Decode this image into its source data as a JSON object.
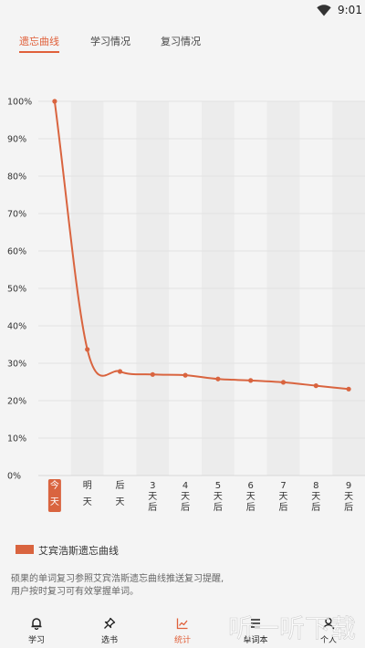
{
  "status_bar": {
    "time": "9:01"
  },
  "tabs": [
    {
      "label": "遗忘曲线",
      "active": true
    },
    {
      "label": "学习情况",
      "active": false
    },
    {
      "label": "复习情况",
      "active": false
    }
  ],
  "chart_data": {
    "type": "line",
    "categories": [
      "今天",
      "明天",
      "后天",
      "3天后",
      "4天后",
      "5天后",
      "6天后",
      "7天后",
      "8天后",
      "9天后"
    ],
    "y_ticks": [
      "100%",
      "90%",
      "80%",
      "70%",
      "60%",
      "50%",
      "40%",
      "30%",
      "20%",
      "10%",
      "0%"
    ],
    "ylim": [
      0,
      100
    ],
    "highlighted_category": "今天",
    "series": [
      {
        "name": "艾宾浩斯遗忘曲线",
        "color": "#d9643f",
        "values": [
          100,
          33.7,
          27.8,
          27.0,
          26.8,
          25.8,
          25.4,
          24.9,
          24.0,
          23.1
        ]
      }
    ],
    "legend_position": "bottom-left"
  },
  "description": "硕果的单词复习参照艾宾浩斯遗忘曲线推送复习提醒,用户按时复习可有效掌握单词。",
  "bottom_nav": [
    {
      "label": "学习",
      "icon": "bell-icon",
      "active": false
    },
    {
      "label": "选书",
      "icon": "pin-icon",
      "active": false
    },
    {
      "label": "统计",
      "icon": "chart-icon",
      "active": true
    },
    {
      "label": "单词本",
      "icon": "list-icon",
      "active": false
    },
    {
      "label": "个人",
      "icon": "user-icon",
      "active": false
    }
  ],
  "watermark": {
    "text": "听一听下载"
  },
  "colors": {
    "accent": "#e0603a",
    "line": "#d9643f"
  }
}
